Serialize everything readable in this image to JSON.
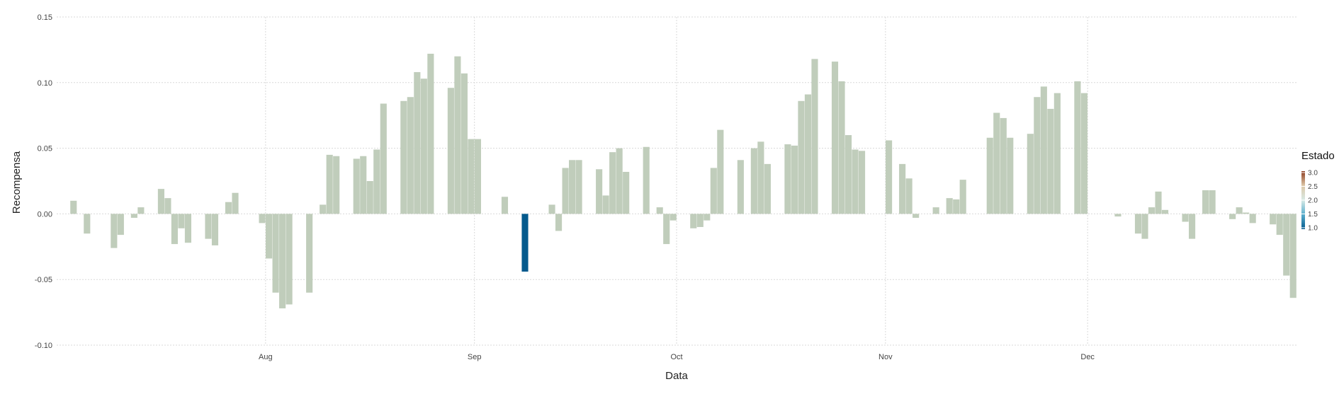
{
  "chart_data": {
    "type": "bar",
    "title": "",
    "xlabel": "Data",
    "ylabel": "Recompensa",
    "ylim": [
      -0.1,
      0.15
    ],
    "yticks": [
      -0.1,
      -0.05,
      0.0,
      0.05,
      0.1,
      0.15
    ],
    "ytick_labels": [
      "-0.10",
      "-0.05",
      "0.00",
      "0.05",
      "0.10",
      "0.15"
    ],
    "x_start": "2023-07-01",
    "x_end": "2023-12-31",
    "x_ticks": [
      {
        "date": "2023-08-01",
        "label": "Aug"
      },
      {
        "date": "2023-09-01",
        "label": "Sep"
      },
      {
        "date": "2023-10-01",
        "label": "Oct"
      },
      {
        "date": "2023-11-01",
        "label": "Nov"
      },
      {
        "date": "2023-12-01",
        "label": "Dec"
      }
    ],
    "grid": true,
    "legend": {
      "title": "Estado",
      "position": "right",
      "range": [
        1.0,
        3.0
      ],
      "tick_labels": [
        "3.0",
        "2.5",
        "2.0",
        "1.5",
        "1.0"
      ],
      "colors": [
        "#045a8d",
        "#5aaecd",
        "#d8eae6",
        "#ddc8a8",
        "#8c3b1e"
      ]
    },
    "colors": {
      "estado_2": "#c0cdbb",
      "estado_1": "#045a8d"
    },
    "series": [
      {
        "date": "2023-07-03",
        "value": 0.01,
        "estado": 2
      },
      {
        "date": "2023-07-05",
        "value": -0.015,
        "estado": 2
      },
      {
        "date": "2023-07-09",
        "value": -0.026,
        "estado": 2
      },
      {
        "date": "2023-07-10",
        "value": -0.016,
        "estado": 2
      },
      {
        "date": "2023-07-12",
        "value": -0.003,
        "estado": 2
      },
      {
        "date": "2023-07-13",
        "value": 0.005,
        "estado": 2
      },
      {
        "date": "2023-07-16",
        "value": 0.019,
        "estado": 2
      },
      {
        "date": "2023-07-17",
        "value": 0.012,
        "estado": 2
      },
      {
        "date": "2023-07-18",
        "value": -0.023,
        "estado": 2
      },
      {
        "date": "2023-07-19",
        "value": -0.011,
        "estado": 2
      },
      {
        "date": "2023-07-20",
        "value": -0.022,
        "estado": 2
      },
      {
        "date": "2023-07-23",
        "value": -0.019,
        "estado": 2
      },
      {
        "date": "2023-07-24",
        "value": -0.024,
        "estado": 2
      },
      {
        "date": "2023-07-26",
        "value": 0.009,
        "estado": 2
      },
      {
        "date": "2023-07-27",
        "value": 0.016,
        "estado": 2
      },
      {
        "date": "2023-07-31",
        "value": -0.007,
        "estado": 2
      },
      {
        "date": "2023-08-01",
        "value": -0.034,
        "estado": 2
      },
      {
        "date": "2023-08-02",
        "value": -0.06,
        "estado": 2
      },
      {
        "date": "2023-08-03",
        "value": -0.072,
        "estado": 2
      },
      {
        "date": "2023-08-04",
        "value": -0.069,
        "estado": 2
      },
      {
        "date": "2023-08-07",
        "value": -0.06,
        "estado": 2
      },
      {
        "date": "2023-08-09",
        "value": 0.007,
        "estado": 2
      },
      {
        "date": "2023-08-10",
        "value": 0.045,
        "estado": 2
      },
      {
        "date": "2023-08-11",
        "value": 0.044,
        "estado": 2
      },
      {
        "date": "2023-08-14",
        "value": 0.042,
        "estado": 2
      },
      {
        "date": "2023-08-15",
        "value": 0.044,
        "estado": 2
      },
      {
        "date": "2023-08-16",
        "value": 0.025,
        "estado": 2
      },
      {
        "date": "2023-08-17",
        "value": 0.049,
        "estado": 2
      },
      {
        "date": "2023-08-18",
        "value": 0.084,
        "estado": 2
      },
      {
        "date": "2023-08-21",
        "value": 0.086,
        "estado": 2
      },
      {
        "date": "2023-08-22",
        "value": 0.089,
        "estado": 2
      },
      {
        "date": "2023-08-23",
        "value": 0.108,
        "estado": 2
      },
      {
        "date": "2023-08-24",
        "value": 0.103,
        "estado": 2
      },
      {
        "date": "2023-08-25",
        "value": 0.122,
        "estado": 2
      },
      {
        "date": "2023-08-28",
        "value": 0.096,
        "estado": 2
      },
      {
        "date": "2023-08-29",
        "value": 0.12,
        "estado": 2
      },
      {
        "date": "2023-08-30",
        "value": 0.107,
        "estado": 2
      },
      {
        "date": "2023-08-31",
        "value": 0.057,
        "estado": 2
      },
      {
        "date": "2023-09-01",
        "value": 0.057,
        "estado": 2
      },
      {
        "date": "2023-09-05",
        "value": 0.013,
        "estado": 2
      },
      {
        "date": "2023-09-08",
        "value": -0.044,
        "estado": 1
      },
      {
        "date": "2023-09-12",
        "value": 0.007,
        "estado": 2
      },
      {
        "date": "2023-09-13",
        "value": -0.013,
        "estado": 2
      },
      {
        "date": "2023-09-14",
        "value": 0.035,
        "estado": 2
      },
      {
        "date": "2023-09-15",
        "value": 0.041,
        "estado": 2
      },
      {
        "date": "2023-09-16",
        "value": 0.041,
        "estado": 2
      },
      {
        "date": "2023-09-19",
        "value": 0.034,
        "estado": 2
      },
      {
        "date": "2023-09-20",
        "value": 0.014,
        "estado": 2
      },
      {
        "date": "2023-09-21",
        "value": 0.047,
        "estado": 2
      },
      {
        "date": "2023-09-22",
        "value": 0.05,
        "estado": 2
      },
      {
        "date": "2023-09-23",
        "value": 0.032,
        "estado": 2
      },
      {
        "date": "2023-09-26",
        "value": 0.051,
        "estado": 2
      },
      {
        "date": "2023-09-28",
        "value": 0.005,
        "estado": 2
      },
      {
        "date": "2023-09-29",
        "value": -0.023,
        "estado": 2
      },
      {
        "date": "2023-09-30",
        "value": -0.005,
        "estado": 2
      },
      {
        "date": "2023-10-03",
        "value": -0.011,
        "estado": 2
      },
      {
        "date": "2023-10-04",
        "value": -0.01,
        "estado": 2
      },
      {
        "date": "2023-10-05",
        "value": -0.005,
        "estado": 2
      },
      {
        "date": "2023-10-06",
        "value": 0.035,
        "estado": 2
      },
      {
        "date": "2023-10-07",
        "value": 0.064,
        "estado": 2
      },
      {
        "date": "2023-10-10",
        "value": 0.041,
        "estado": 2
      },
      {
        "date": "2023-10-12",
        "value": 0.05,
        "estado": 2
      },
      {
        "date": "2023-10-13",
        "value": 0.055,
        "estado": 2
      },
      {
        "date": "2023-10-14",
        "value": 0.038,
        "estado": 2
      },
      {
        "date": "2023-10-17",
        "value": 0.053,
        "estado": 2
      },
      {
        "date": "2023-10-18",
        "value": 0.052,
        "estado": 2
      },
      {
        "date": "2023-10-19",
        "value": 0.086,
        "estado": 2
      },
      {
        "date": "2023-10-20",
        "value": 0.091,
        "estado": 2
      },
      {
        "date": "2023-10-21",
        "value": 0.118,
        "estado": 2
      },
      {
        "date": "2023-10-24",
        "value": 0.116,
        "estado": 2
      },
      {
        "date": "2023-10-25",
        "value": 0.101,
        "estado": 2
      },
      {
        "date": "2023-10-26",
        "value": 0.06,
        "estado": 2
      },
      {
        "date": "2023-10-27",
        "value": 0.049,
        "estado": 2
      },
      {
        "date": "2023-10-28",
        "value": 0.048,
        "estado": 2
      },
      {
        "date": "2023-11-01",
        "value": 0.056,
        "estado": 2
      },
      {
        "date": "2023-11-03",
        "value": 0.038,
        "estado": 2
      },
      {
        "date": "2023-11-04",
        "value": 0.027,
        "estado": 2
      },
      {
        "date": "2023-11-05",
        "value": -0.003,
        "estado": 2
      },
      {
        "date": "2023-11-08",
        "value": 0.005,
        "estado": 2
      },
      {
        "date": "2023-11-10",
        "value": 0.012,
        "estado": 2
      },
      {
        "date": "2023-11-11",
        "value": 0.011,
        "estado": 2
      },
      {
        "date": "2023-11-12",
        "value": 0.026,
        "estado": 2
      },
      {
        "date": "2023-11-16",
        "value": 0.058,
        "estado": 2
      },
      {
        "date": "2023-11-17",
        "value": 0.077,
        "estado": 2
      },
      {
        "date": "2023-11-18",
        "value": 0.073,
        "estado": 2
      },
      {
        "date": "2023-11-19",
        "value": 0.058,
        "estado": 2
      },
      {
        "date": "2023-11-22",
        "value": 0.061,
        "estado": 2
      },
      {
        "date": "2023-11-23",
        "value": 0.089,
        "estado": 2
      },
      {
        "date": "2023-11-24",
        "value": 0.097,
        "estado": 2
      },
      {
        "date": "2023-11-25",
        "value": 0.08,
        "estado": 2
      },
      {
        "date": "2023-11-26",
        "value": 0.092,
        "estado": 2
      },
      {
        "date": "2023-11-29",
        "value": 0.101,
        "estado": 2
      },
      {
        "date": "2023-11-30",
        "value": 0.092,
        "estado": 2
      },
      {
        "date": "2023-12-05",
        "value": -0.002,
        "estado": 2
      },
      {
        "date": "2023-12-08",
        "value": -0.015,
        "estado": 2
      },
      {
        "date": "2023-12-09",
        "value": -0.019,
        "estado": 2
      },
      {
        "date": "2023-12-10",
        "value": 0.005,
        "estado": 2
      },
      {
        "date": "2023-12-11",
        "value": 0.017,
        "estado": 2
      },
      {
        "date": "2023-12-12",
        "value": 0.003,
        "estado": 2
      },
      {
        "date": "2023-12-15",
        "value": -0.006,
        "estado": 2
      },
      {
        "date": "2023-12-16",
        "value": -0.019,
        "estado": 2
      },
      {
        "date": "2023-12-18",
        "value": 0.018,
        "estado": 2
      },
      {
        "date": "2023-12-19",
        "value": 0.018,
        "estado": 2
      },
      {
        "date": "2023-12-22",
        "value": -0.004,
        "estado": 2
      },
      {
        "date": "2023-12-23",
        "value": 0.005,
        "estado": 2
      },
      {
        "date": "2023-12-24",
        "value": 0.001,
        "estado": 2
      },
      {
        "date": "2023-12-25",
        "value": -0.007,
        "estado": 2
      },
      {
        "date": "2023-12-28",
        "value": -0.008,
        "estado": 2
      },
      {
        "date": "2023-12-29",
        "value": -0.016,
        "estado": 2
      },
      {
        "date": "2023-12-30",
        "value": -0.047,
        "estado": 2
      },
      {
        "date": "2023-12-31",
        "value": -0.064,
        "estado": 2
      }
    ]
  }
}
